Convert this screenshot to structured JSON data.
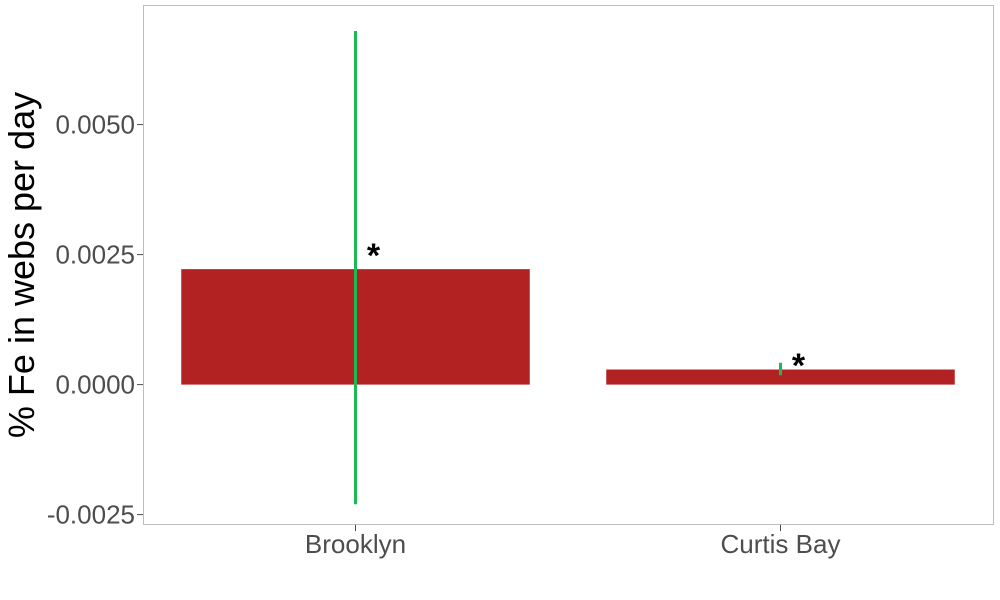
{
  "chart_data": {
    "type": "bar",
    "title": "",
    "xlabel": "",
    "ylabel": "% Fe in webs per day",
    "categories": [
      "Brooklyn",
      "Curtis Bay"
    ],
    "values": [
      0.00222,
      0.00029
    ],
    "error_bars": [
      {
        "low": -0.0023,
        "high": 0.0068
      },
      {
        "low": 0.00018,
        "high": 0.00042
      }
    ],
    "annotations": [
      "*",
      "*"
    ],
    "ylim": [
      -0.0027,
      0.0073
    ],
    "yticks": [
      -0.0025,
      0.0,
      0.0025,
      0.005
    ],
    "ytick_labels": [
      "-0.0025",
      "0.0000",
      "0.0025",
      "0.0050"
    ],
    "grid": false,
    "colors": {
      "bar": "#b22222",
      "error_bar": "#1db954",
      "panel_border": "#bdbdbd",
      "axis_text": "#4d4d4d"
    }
  }
}
